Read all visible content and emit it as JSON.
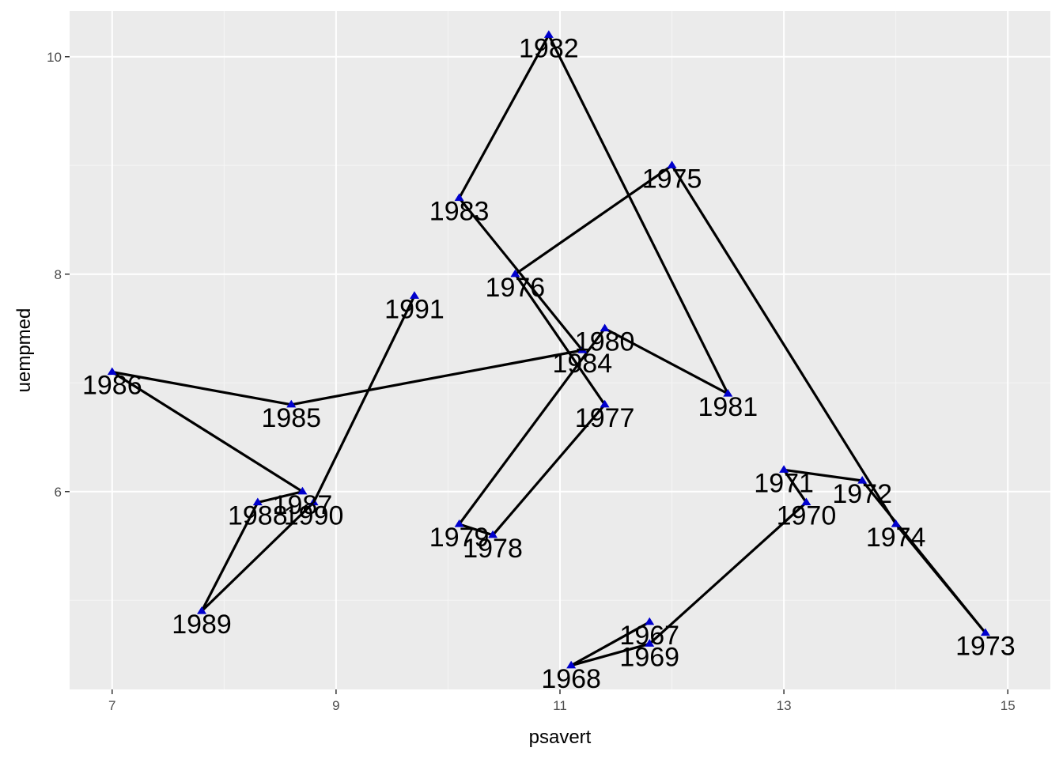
{
  "chart_data": {
    "type": "scatter",
    "title": "",
    "xlabel": "psavert",
    "ylabel": "uempmed",
    "xlim": [
      6.62,
      15.38
    ],
    "ylim": [
      4.18,
      10.42
    ],
    "x_ticks": [
      7,
      9,
      11,
      13,
      15
    ],
    "y_ticks": [
      6,
      8,
      10
    ],
    "x_tick_labels": [
      "7",
      "9",
      "11",
      "13",
      "15"
    ],
    "y_tick_labels": [
      "6",
      "8",
      "10"
    ],
    "grid": true,
    "legend": "none",
    "colors": {
      "panel_background": "#ebebeb",
      "grid_major": "#ffffff",
      "grid_minor": "#f5f5f5",
      "path_line": "#000000",
      "point_fill": "#0000cd",
      "label_text": "#000000",
      "tick_text": "#4d4d4d"
    },
    "marker": "triangle",
    "connected_path": true,
    "points": [
      {
        "label": "1967",
        "x": 11.8,
        "y": 4.8
      },
      {
        "label": "1968",
        "x": 11.1,
        "y": 4.4
      },
      {
        "label": "1969",
        "x": 11.8,
        "y": 4.6
      },
      {
        "label": "1970",
        "x": 13.2,
        "y": 5.9
      },
      {
        "label": "1971",
        "x": 13.0,
        "y": 6.2
      },
      {
        "label": "1972",
        "x": 13.7,
        "y": 6.1
      },
      {
        "label": "1973",
        "x": 14.8,
        "y": 4.7
      },
      {
        "label": "1974",
        "x": 14.0,
        "y": 5.7
      },
      {
        "label": "1975",
        "x": 12.0,
        "y": 9.0
      },
      {
        "label": "1976",
        "x": 10.6,
        "y": 8.0
      },
      {
        "label": "1977",
        "x": 11.4,
        "y": 6.8
      },
      {
        "label": "1978",
        "x": 10.4,
        "y": 5.6
      },
      {
        "label": "1979",
        "x": 10.1,
        "y": 5.7
      },
      {
        "label": "1980",
        "x": 11.4,
        "y": 7.5
      },
      {
        "label": "1981",
        "x": 12.5,
        "y": 6.9
      },
      {
        "label": "1982",
        "x": 10.9,
        "y": 10.2
      },
      {
        "label": "1983",
        "x": 10.1,
        "y": 8.7
      },
      {
        "label": "1984",
        "x": 11.2,
        "y": 7.3
      },
      {
        "label": "1985",
        "x": 8.6,
        "y": 6.8
      },
      {
        "label": "1986",
        "x": 7.0,
        "y": 7.1
      },
      {
        "label": "1987",
        "x": 8.7,
        "y": 6.0
      },
      {
        "label": "1988",
        "x": 8.3,
        "y": 5.9
      },
      {
        "label": "1989",
        "x": 7.8,
        "y": 4.9
      },
      {
        "label": "1990",
        "x": 8.8,
        "y": 5.9
      },
      {
        "label": "1991",
        "x": 9.7,
        "y": 7.8
      }
    ]
  }
}
